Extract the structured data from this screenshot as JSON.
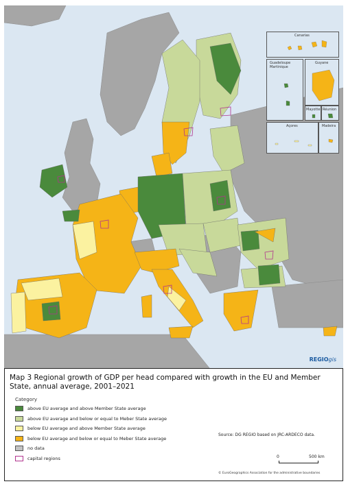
{
  "map": {
    "sea_color": "#dbe7f2",
    "non_eu_color": "#a6a6a6",
    "border_color": "#6a6a6a",
    "capital_color": "#b1338e"
  },
  "insets": {
    "canarias": "Canarias",
    "guadeloupe_martinique": "Guadeloupe\nMartinique",
    "guyane": "Guyane",
    "mayotte": "Mayotte",
    "reunion": "Réunion",
    "acores": "Açores",
    "madeira": "Madeira"
  },
  "logo": {
    "main": "REGIO",
    "suffix": "gis"
  },
  "title": "Map 3 Regional growth of GDP per head compared with growth in the EU and Member State, annual average, 2001–2021",
  "legend": {
    "header": "Category",
    "items": [
      {
        "label": "above EU average and above Member State average",
        "color": "#4a8a3c"
      },
      {
        "label": "above EU average and below or equal to Meber State average",
        "color": "#c8d99a"
      },
      {
        "label": "below EU average and above Member State average",
        "color": "#fbf2a0"
      },
      {
        "label": "below EU average and below or equal to Meber State average",
        "color": "#f5b417"
      },
      {
        "label": "no data",
        "color": "#c3c3c3"
      },
      {
        "label": "capital regions",
        "color": "#ffffff",
        "border": "#b1338e"
      }
    ]
  },
  "source": "Source: DG REGIO based on JRC-ARDECO data.",
  "scale": {
    "zero": "0",
    "max": "500 km"
  },
  "copyright": "© EuroGeographics Association for the administrative boundaries"
}
